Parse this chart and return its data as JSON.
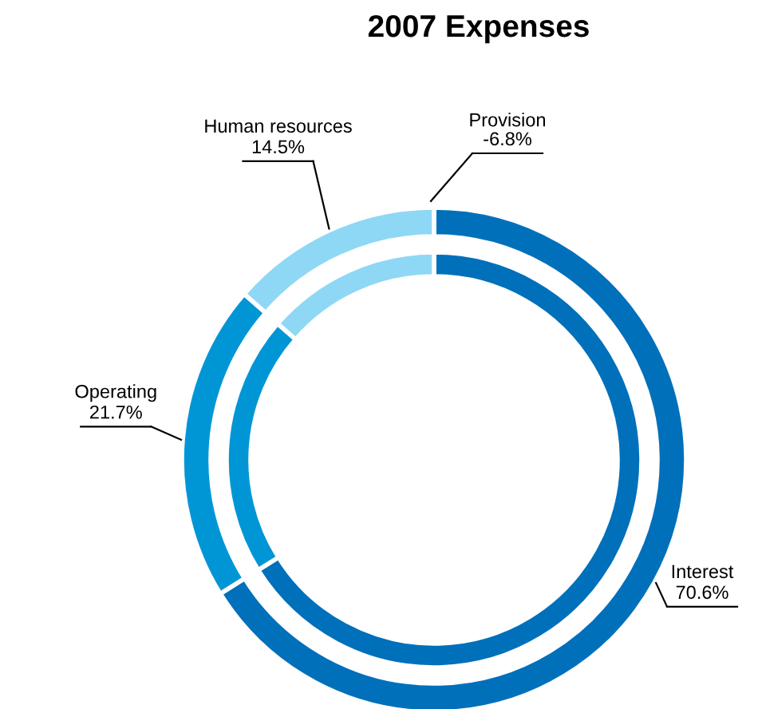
{
  "chart_data": {
    "type": "donut",
    "title": "2007 Expenses",
    "categories": [
      "Interest",
      "Operating",
      "Human resources"
    ],
    "colors": [
      "#0070bb",
      "#0096d6",
      "#8fd8f5"
    ],
    "series": [
      {
        "values": [
          70.6,
          21.7,
          14.5
        ],
        "value_labels": [
          "70.6%",
          "21.7%",
          "14.5%"
        ]
      },
      {
        "values": [
          66.1,
          20.3,
          13.6
        ]
      }
    ],
    "annotations": [
      "Provision\n-6.8%"
    ],
    "legend": false
  }
}
